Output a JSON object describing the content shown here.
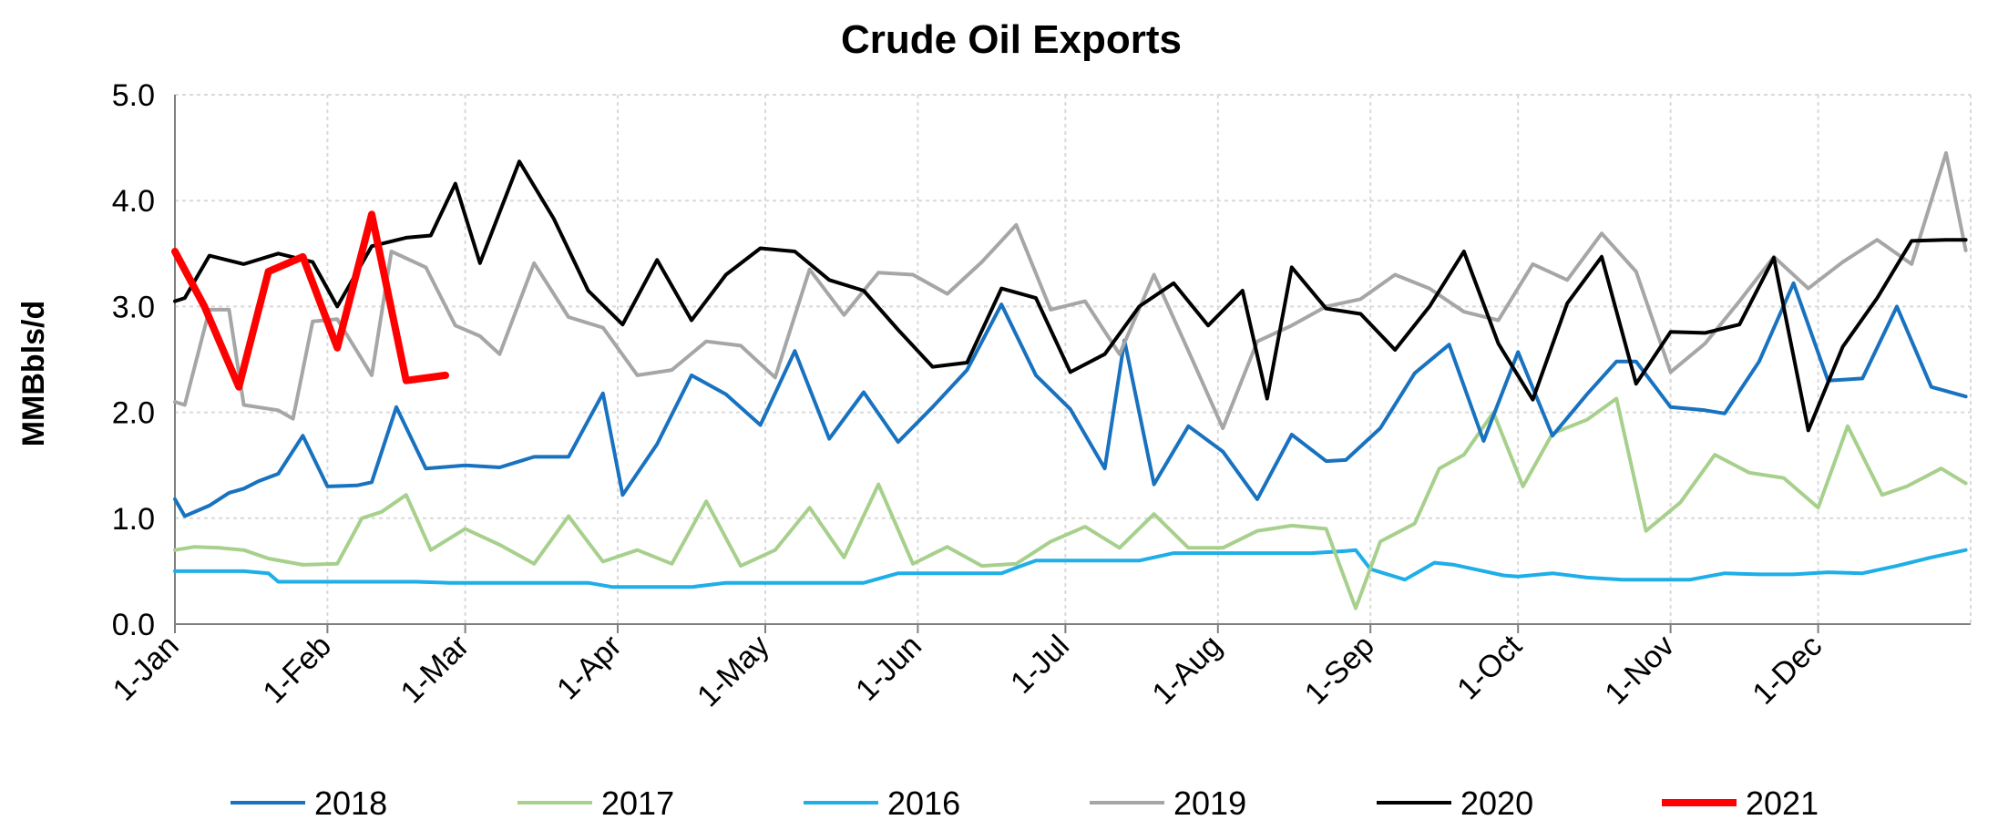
{
  "chart_data": {
    "type": "line",
    "title": "Crude Oil Exports",
    "ylabel": "MMBbls/d",
    "xlabel": "",
    "ylim": [
      0,
      5
    ],
    "yticks": [
      "0.0",
      "1.0",
      "2.0",
      "3.0",
      "4.0",
      "5.0"
    ],
    "xlim_days": [
      0,
      365
    ],
    "x_axis": "day of year",
    "xticks": [
      {
        "day": 0,
        "label": "1-Jan"
      },
      {
        "day": 31,
        "label": "1-Feb"
      },
      {
        "day": 59,
        "label": "1-Mar"
      },
      {
        "day": 90,
        "label": "1-Apr"
      },
      {
        "day": 120,
        "label": "1-May"
      },
      {
        "day": 151,
        "label": "1-Jun"
      },
      {
        "day": 181,
        "label": "1-Jul"
      },
      {
        "day": 212,
        "label": "1-Aug"
      },
      {
        "day": 243,
        "label": "1-Sep"
      },
      {
        "day": 273,
        "label": "1-Oct"
      },
      {
        "day": 304,
        "label": "1-Nov"
      },
      {
        "day": 334,
        "label": "1-Dec"
      }
    ],
    "grid": true,
    "legend_position": "bottom",
    "series": [
      {
        "name": "2016",
        "color": "#1eaee8",
        "width": 4,
        "points": [
          [
            0,
            0.5
          ],
          [
            7,
            0.5
          ],
          [
            14,
            0.5
          ],
          [
            19,
            0.48
          ],
          [
            21,
            0.4
          ],
          [
            28,
            0.4
          ],
          [
            35,
            0.4
          ],
          [
            42,
            0.4
          ],
          [
            49,
            0.4
          ],
          [
            56,
            0.39
          ],
          [
            63,
            0.39
          ],
          [
            70,
            0.39
          ],
          [
            77,
            0.39
          ],
          [
            84,
            0.39
          ],
          [
            89,
            0.35
          ],
          [
            96,
            0.35
          ],
          [
            103,
            0.35
          ],
          [
            105,
            0.35
          ],
          [
            112,
            0.39
          ],
          [
            119,
            0.39
          ],
          [
            126,
            0.39
          ],
          [
            133,
            0.39
          ],
          [
            140,
            0.39
          ],
          [
            147,
            0.48
          ],
          [
            154,
            0.48
          ],
          [
            161,
            0.48
          ],
          [
            168,
            0.48
          ],
          [
            172,
            0.55
          ],
          [
            175,
            0.6
          ],
          [
            182,
            0.6
          ],
          [
            189,
            0.6
          ],
          [
            196,
            0.6
          ],
          [
            203,
            0.67
          ],
          [
            210,
            0.67
          ],
          [
            217,
            0.67
          ],
          [
            224,
            0.67
          ],
          [
            231,
            0.67
          ],
          [
            238,
            0.69
          ],
          [
            240,
            0.7
          ],
          [
            243,
            0.52
          ],
          [
            250,
            0.42
          ],
          [
            256,
            0.58
          ],
          [
            260,
            0.56
          ],
          [
            265,
            0.51
          ],
          [
            270,
            0.46
          ],
          [
            273,
            0.45
          ],
          [
            280,
            0.48
          ],
          [
            287,
            0.44
          ],
          [
            294,
            0.42
          ],
          [
            301,
            0.42
          ],
          [
            308,
            0.42
          ],
          [
            315,
            0.48
          ],
          [
            322,
            0.47
          ],
          [
            329,
            0.47
          ],
          [
            336,
            0.49
          ],
          [
            343,
            0.48
          ],
          [
            350,
            0.55
          ],
          [
            357,
            0.63
          ],
          [
            364,
            0.7
          ]
        ]
      },
      {
        "name": "2017",
        "color": "#a7d08c",
        "width": 4,
        "points": [
          [
            0,
            0.7
          ],
          [
            4,
            0.73
          ],
          [
            9,
            0.72
          ],
          [
            14,
            0.7
          ],
          [
            19,
            0.62
          ],
          [
            26,
            0.56
          ],
          [
            33,
            0.57
          ],
          [
            38,
            1.0
          ],
          [
            42,
            1.06
          ],
          [
            47,
            1.22
          ],
          [
            52,
            0.7
          ],
          [
            59,
            0.9
          ],
          [
            66,
            0.75
          ],
          [
            73,
            0.57
          ],
          [
            80,
            1.02
          ],
          [
            87,
            0.59
          ],
          [
            94,
            0.7
          ],
          [
            101,
            0.57
          ],
          [
            108,
            1.16
          ],
          [
            115,
            0.55
          ],
          [
            122,
            0.7
          ],
          [
            129,
            1.1
          ],
          [
            136,
            0.63
          ],
          [
            143,
            1.32
          ],
          [
            150,
            0.57
          ],
          [
            157,
            0.73
          ],
          [
            164,
            0.55
          ],
          [
            171,
            0.57
          ],
          [
            178,
            0.78
          ],
          [
            185,
            0.92
          ],
          [
            192,
            0.72
          ],
          [
            199,
            1.04
          ],
          [
            206,
            0.72
          ],
          [
            213,
            0.72
          ],
          [
            220,
            0.88
          ],
          [
            227,
            0.93
          ],
          [
            234,
            0.9
          ],
          [
            240,
            0.15
          ],
          [
            245,
            0.78
          ],
          [
            252,
            0.95
          ],
          [
            257,
            1.47
          ],
          [
            262,
            1.6
          ],
          [
            268,
            2.0
          ],
          [
            274,
            1.3
          ],
          [
            280,
            1.8
          ],
          [
            287,
            1.93
          ],
          [
            293,
            2.13
          ],
          [
            299,
            0.88
          ],
          [
            306,
            1.15
          ],
          [
            313,
            1.6
          ],
          [
            320,
            1.43
          ],
          [
            327,
            1.38
          ],
          [
            334,
            1.1
          ],
          [
            340,
            1.87
          ],
          [
            347,
            1.22
          ],
          [
            352,
            1.3
          ],
          [
            359,
            1.47
          ],
          [
            364,
            1.33
          ]
        ]
      },
      {
        "name": "2018",
        "color": "#1872bf",
        "width": 4,
        "points": [
          [
            0,
            1.18
          ],
          [
            2,
            1.02
          ],
          [
            7,
            1.12
          ],
          [
            11,
            1.24
          ],
          [
            14,
            1.28
          ],
          [
            17,
            1.35
          ],
          [
            21,
            1.42
          ],
          [
            26,
            1.78
          ],
          [
            31,
            1.3
          ],
          [
            37,
            1.31
          ],
          [
            40,
            1.34
          ],
          [
            45,
            2.05
          ],
          [
            51,
            1.47
          ],
          [
            59,
            1.5
          ],
          [
            66,
            1.48
          ],
          [
            73,
            1.58
          ],
          [
            80,
            1.58
          ],
          [
            87,
            2.18
          ],
          [
            91,
            1.22
          ],
          [
            98,
            1.7
          ],
          [
            105,
            2.35
          ],
          [
            112,
            2.17
          ],
          [
            119,
            1.88
          ],
          [
            126,
            2.58
          ],
          [
            133,
            1.75
          ],
          [
            140,
            2.19
          ],
          [
            147,
            1.72
          ],
          [
            154,
            2.05
          ],
          [
            161,
            2.4
          ],
          [
            168,
            3.02
          ],
          [
            175,
            2.35
          ],
          [
            182,
            2.03
          ],
          [
            189,
            1.47
          ],
          [
            193,
            2.68
          ],
          [
            199,
            1.32
          ],
          [
            206,
            1.87
          ],
          [
            213,
            1.63
          ],
          [
            220,
            1.18
          ],
          [
            227,
            1.79
          ],
          [
            234,
            1.54
          ],
          [
            238,
            1.55
          ],
          [
            245,
            1.85
          ],
          [
            252,
            2.37
          ],
          [
            259,
            2.64
          ],
          [
            266,
            1.73
          ],
          [
            273,
            2.57
          ],
          [
            280,
            1.78
          ],
          [
            287,
            2.17
          ],
          [
            293,
            2.48
          ],
          [
            297,
            2.48
          ],
          [
            304,
            2.05
          ],
          [
            311,
            2.02
          ],
          [
            315,
            1.99
          ],
          [
            322,
            2.48
          ],
          [
            329,
            3.22
          ],
          [
            336,
            2.3
          ],
          [
            343,
            2.32
          ],
          [
            350,
            3.0
          ],
          [
            357,
            2.24
          ],
          [
            364,
            2.15
          ]
        ]
      },
      {
        "name": "2019",
        "color": "#a6a6a6",
        "width": 4,
        "points": [
          [
            0,
            2.1
          ],
          [
            2,
            2.07
          ],
          [
            7,
            2.97
          ],
          [
            11,
            2.97
          ],
          [
            14,
            2.07
          ],
          [
            21,
            2.02
          ],
          [
            24,
            1.94
          ],
          [
            28,
            2.86
          ],
          [
            33,
            2.88
          ],
          [
            40,
            2.35
          ],
          [
            44,
            3.52
          ],
          [
            51,
            3.37
          ],
          [
            57,
            2.82
          ],
          [
            62,
            2.72
          ],
          [
            66,
            2.55
          ],
          [
            73,
            3.41
          ],
          [
            80,
            2.9
          ],
          [
            87,
            2.8
          ],
          [
            94,
            2.35
          ],
          [
            101,
            2.4
          ],
          [
            108,
            2.67
          ],
          [
            115,
            2.63
          ],
          [
            122,
            2.33
          ],
          [
            129,
            3.35
          ],
          [
            136,
            2.92
          ],
          [
            143,
            3.32
          ],
          [
            150,
            3.3
          ],
          [
            157,
            3.12
          ],
          [
            164,
            3.42
          ],
          [
            171,
            3.77
          ],
          [
            178,
            2.97
          ],
          [
            185,
            3.05
          ],
          [
            192,
            2.55
          ],
          [
            199,
            3.3
          ],
          [
            206,
            2.58
          ],
          [
            213,
            1.85
          ],
          [
            220,
            2.67
          ],
          [
            227,
            2.82
          ],
          [
            234,
            3.0
          ],
          [
            241,
            3.07
          ],
          [
            248,
            3.3
          ],
          [
            255,
            3.17
          ],
          [
            262,
            2.95
          ],
          [
            269,
            2.87
          ],
          [
            276,
            3.4
          ],
          [
            283,
            3.25
          ],
          [
            290,
            3.69
          ],
          [
            297,
            3.33
          ],
          [
            304,
            2.38
          ],
          [
            311,
            2.65
          ],
          [
            318,
            3.05
          ],
          [
            325,
            3.47
          ],
          [
            332,
            3.17
          ],
          [
            339,
            3.42
          ],
          [
            346,
            3.63
          ],
          [
            353,
            3.4
          ],
          [
            360,
            4.45
          ],
          [
            364,
            3.53
          ]
        ]
      },
      {
        "name": "2020",
        "color": "#000000",
        "width": 4,
        "points": [
          [
            0,
            3.05
          ],
          [
            2,
            3.08
          ],
          [
            7,
            3.48
          ],
          [
            14,
            3.4
          ],
          [
            21,
            3.5
          ],
          [
            28,
            3.42
          ],
          [
            33,
            3.0
          ],
          [
            40,
            3.57
          ],
          [
            47,
            3.65
          ],
          [
            52,
            3.67
          ],
          [
            57,
            4.16
          ],
          [
            62,
            3.41
          ],
          [
            70,
            4.37
          ],
          [
            77,
            3.83
          ],
          [
            84,
            3.15
          ],
          [
            91,
            2.83
          ],
          [
            98,
            3.44
          ],
          [
            105,
            2.87
          ],
          [
            112,
            3.3
          ],
          [
            119,
            3.55
          ],
          [
            126,
            3.52
          ],
          [
            133,
            3.25
          ],
          [
            140,
            3.15
          ],
          [
            147,
            2.78
          ],
          [
            154,
            2.43
          ],
          [
            161,
            2.47
          ],
          [
            168,
            3.17
          ],
          [
            175,
            3.08
          ],
          [
            182,
            2.38
          ],
          [
            189,
            2.55
          ],
          [
            196,
            3.0
          ],
          [
            203,
            3.22
          ],
          [
            210,
            2.82
          ],
          [
            217,
            3.15
          ],
          [
            222,
            2.13
          ],
          [
            227,
            3.37
          ],
          [
            234,
            2.98
          ],
          [
            241,
            2.93
          ],
          [
            248,
            2.59
          ],
          [
            255,
            3.0
          ],
          [
            262,
            3.52
          ],
          [
            269,
            2.65
          ],
          [
            276,
            2.12
          ],
          [
            283,
            3.03
          ],
          [
            290,
            3.47
          ],
          [
            297,
            2.27
          ],
          [
            304,
            2.76
          ],
          [
            311,
            2.75
          ],
          [
            318,
            2.83
          ],
          [
            325,
            3.46
          ],
          [
            332,
            1.83
          ],
          [
            339,
            2.62
          ],
          [
            346,
            3.08
          ],
          [
            353,
            3.62
          ],
          [
            360,
            3.63
          ],
          [
            364,
            3.63
          ]
        ]
      },
      {
        "name": "2021",
        "color": "#ff0000",
        "width": 8,
        "points": [
          [
            0,
            3.52
          ],
          [
            6,
            3.0
          ],
          [
            13,
            2.24
          ],
          [
            19,
            3.33
          ],
          [
            26,
            3.47
          ],
          [
            33,
            2.61
          ],
          [
            40,
            3.87
          ],
          [
            47,
            2.3
          ],
          [
            55,
            2.35
          ]
        ]
      }
    ]
  }
}
